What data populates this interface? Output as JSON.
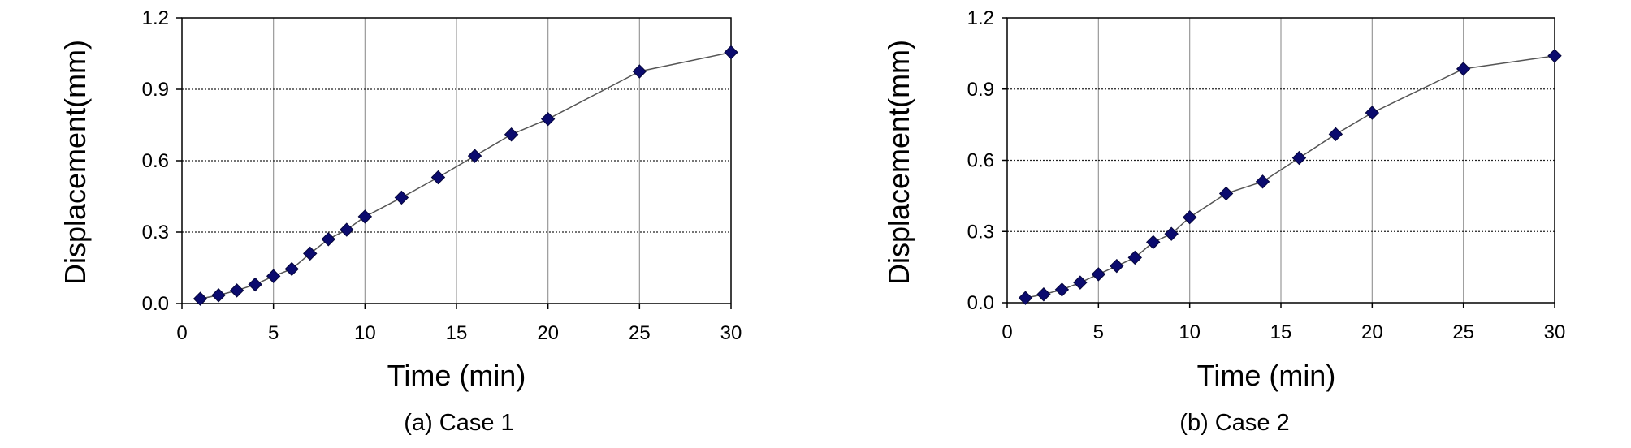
{
  "chart_data": [
    {
      "type": "line",
      "caption": "(a) Case 1",
      "xlabel": "Time (min)",
      "ylabel": "Displacement(mm)",
      "xlim": [
        0,
        30
      ],
      "ylim": [
        0,
        1.2
      ],
      "xticks": [
        0,
        5,
        10,
        15,
        20,
        25,
        30
      ],
      "yticks": [
        0.0,
        0.3,
        0.6,
        0.9,
        1.2
      ],
      "ytick_labels": [
        "0.0",
        "0.3",
        "0.6",
        "0.9",
        "1.2"
      ],
      "grid": "vertical solid, horizontal dotted",
      "marker": "diamond",
      "marker_color": "#0b0b6e",
      "line_color": "#555555",
      "series": [
        {
          "x": [
            1,
            2,
            3,
            4,
            5,
            6,
            7,
            8,
            9,
            10,
            12,
            14,
            16,
            18,
            20,
            25,
            30
          ],
          "y": [
            0.02,
            0.035,
            0.055,
            0.08,
            0.115,
            0.145,
            0.21,
            0.27,
            0.31,
            0.365,
            0.445,
            0.53,
            0.62,
            0.71,
            0.775,
            0.975,
            1.055
          ]
        }
      ]
    },
    {
      "type": "line",
      "caption": "(b) Case 2",
      "xlabel": "Time (min)",
      "ylabel": "Displacement(mm)",
      "xlim": [
        0,
        30
      ],
      "ylim": [
        0,
        1.2
      ],
      "xticks": [
        0,
        5,
        10,
        15,
        20,
        25,
        30
      ],
      "yticks": [
        0.0,
        0.3,
        0.6,
        0.9,
        1.2
      ],
      "ytick_labels": [
        "0.0",
        "0.3",
        "0.6",
        "0.9",
        "1.2"
      ],
      "grid": "vertical solid, horizontal dotted",
      "marker": "diamond",
      "marker_color": "#0b0b6e",
      "line_color": "#555555",
      "series": [
        {
          "x": [
            1,
            2,
            3,
            4,
            5,
            6,
            7,
            8,
            9,
            10,
            12,
            14,
            16,
            18,
            20,
            25,
            30
          ],
          "y": [
            0.02,
            0.035,
            0.055,
            0.085,
            0.12,
            0.155,
            0.19,
            0.255,
            0.29,
            0.36,
            0.46,
            0.51,
            0.61,
            0.71,
            0.8,
            0.985,
            1.04
          ]
        }
      ]
    }
  ]
}
